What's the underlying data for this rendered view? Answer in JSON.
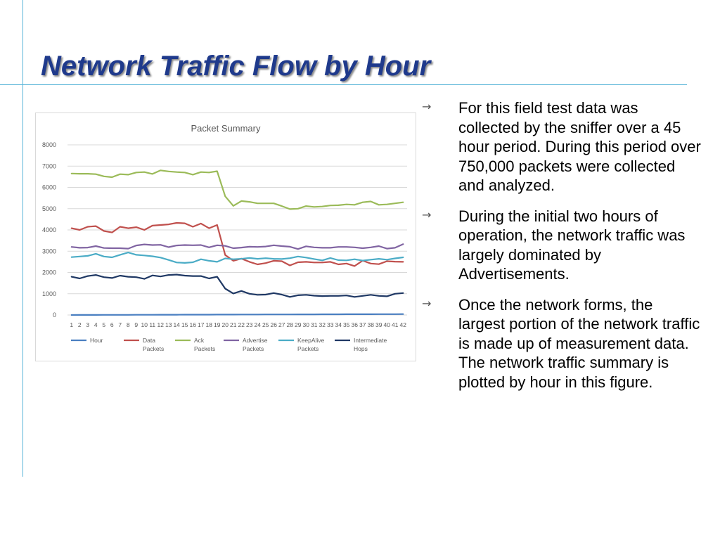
{
  "slide": {
    "title": "Network Traffic Flow by Hour",
    "bullets": [
      {
        "icon": "arrow-right-icon",
        "text": "For this field test data was collected by the sniffer over a 45 hour period. During this period over 750,000 packets were collected and analyzed."
      },
      {
        "icon": "arrow-right-icon",
        "text": "During the initial two hours of operation, the network traffic was largely dominated by Advertisements."
      },
      {
        "icon": "arrow-right-icon",
        "text": "Once the network forms, the largest portion of the network traffic is made up of measurement data. The network traffic summary is plotted by hour in this figure."
      }
    ],
    "colors": {
      "title": "#1f3a8c",
      "rules": "#58b4d8",
      "arrow": "#555555"
    }
  },
  "chart_data": {
    "type": "line",
    "title": "Packet Summary",
    "xlabel": "",
    "ylabel": "",
    "ylim": [
      0,
      8000
    ],
    "yticks": [
      0,
      1000,
      2000,
      3000,
      4000,
      5000,
      6000,
      7000,
      8000
    ],
    "categories": [
      "1",
      "2",
      "3",
      "4",
      "5",
      "6",
      "7",
      "8",
      "9",
      "10",
      "11",
      "12",
      "13",
      "14",
      "15",
      "16",
      "17",
      "18",
      "19",
      "20",
      "21",
      "22",
      "23",
      "24",
      "25",
      "26",
      "27",
      "28",
      "29",
      "30",
      "31",
      "32",
      "33",
      "34",
      "35",
      "36",
      "37",
      "38",
      "39",
      "40",
      "41",
      "42"
    ],
    "grid": true,
    "legend_position": "bottom",
    "series": [
      {
        "name": "Hour",
        "color": "#4a7fc1",
        "values": [
          1,
          2,
          3,
          4,
          5,
          6,
          7,
          8,
          9,
          10,
          11,
          12,
          13,
          14,
          15,
          16,
          17,
          18,
          19,
          20,
          21,
          22,
          23,
          24,
          25,
          26,
          27,
          28,
          29,
          30,
          31,
          32,
          33,
          34,
          35,
          36,
          37,
          38,
          39,
          40,
          41,
          42
        ]
      },
      {
        "name": "Data Packets",
        "color": "#c0504d",
        "values": [
          4080,
          4000,
          4150,
          4180,
          3950,
          3880,
          4150,
          4080,
          4130,
          4000,
          4200,
          4230,
          4260,
          4330,
          4310,
          4150,
          4300,
          4080,
          4230,
          2820,
          2550,
          2650,
          2500,
          2380,
          2440,
          2550,
          2530,
          2330,
          2480,
          2500,
          2470,
          2470,
          2500,
          2380,
          2420,
          2300,
          2560,
          2420,
          2390,
          2530,
          2510,
          2500
        ]
      },
      {
        "name": "Ack Packets",
        "color": "#9bbb59",
        "values": [
          6650,
          6640,
          6640,
          6620,
          6520,
          6480,
          6620,
          6600,
          6700,
          6720,
          6630,
          6800,
          6750,
          6720,
          6700,
          6600,
          6720,
          6700,
          6760,
          5580,
          5130,
          5360,
          5320,
          5250,
          5250,
          5250,
          5120,
          4980,
          5000,
          5120,
          5080,
          5100,
          5150,
          5160,
          5200,
          5180,
          5300,
          5340,
          5180,
          5200,
          5250,
          5300
        ]
      },
      {
        "name": "Advertise Packets",
        "color": "#8064a2",
        "values": [
          3200,
          3160,
          3170,
          3240,
          3150,
          3140,
          3140,
          3120,
          3270,
          3320,
          3290,
          3300,
          3190,
          3270,
          3290,
          3280,
          3290,
          3180,
          3280,
          3250,
          3140,
          3170,
          3210,
          3200,
          3220,
          3280,
          3240,
          3210,
          3100,
          3230,
          3180,
          3160,
          3160,
          3200,
          3200,
          3180,
          3140,
          3180,
          3240,
          3120,
          3160,
          3330
        ]
      },
      {
        "name": "KeepAlive Packets",
        "color": "#4bacc6",
        "values": [
          2720,
          2750,
          2780,
          2880,
          2750,
          2710,
          2830,
          2940,
          2830,
          2800,
          2760,
          2700,
          2590,
          2470,
          2450,
          2480,
          2620,
          2550,
          2500,
          2660,
          2620,
          2640,
          2680,
          2640,
          2670,
          2640,
          2630,
          2670,
          2750,
          2700,
          2630,
          2570,
          2680,
          2580,
          2570,
          2620,
          2560,
          2600,
          2640,
          2600,
          2660,
          2710
        ]
      },
      {
        "name": "Intermediate Hops",
        "color": "#1f3864",
        "values": [
          1800,
          1720,
          1830,
          1880,
          1780,
          1740,
          1850,
          1800,
          1780,
          1700,
          1860,
          1810,
          1880,
          1900,
          1850,
          1830,
          1830,
          1720,
          1800,
          1240,
          1010,
          1130,
          1000,
          950,
          960,
          1030,
          960,
          850,
          930,
          950,
          910,
          890,
          900,
          900,
          920,
          850,
          900,
          950,
          900,
          880,
          1000,
          1030
        ]
      }
    ]
  }
}
